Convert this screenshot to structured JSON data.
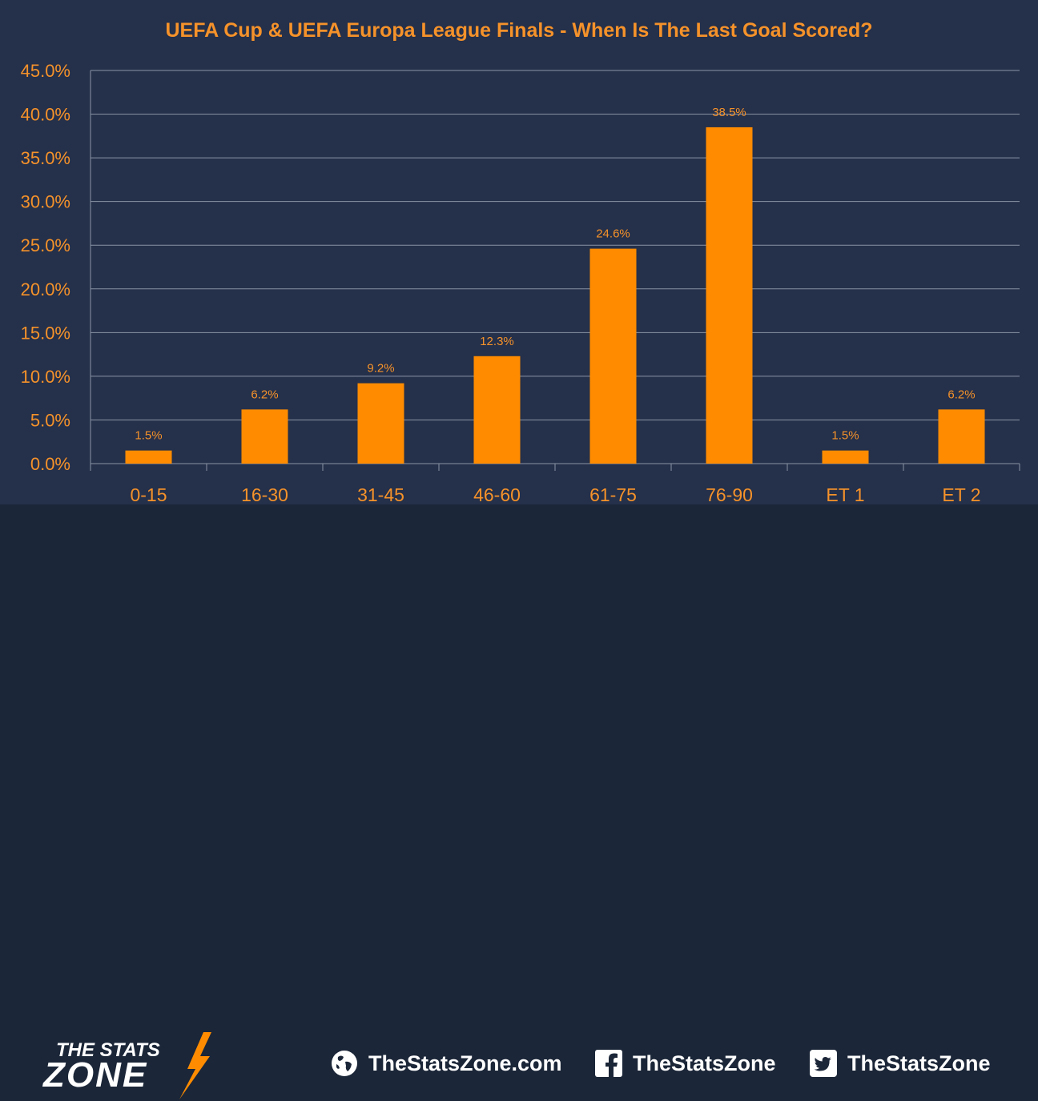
{
  "chart_data": {
    "type": "bar",
    "title": "UEFA Cup & UEFA Europa League Finals - When Is The Last Goal Scored?",
    "categories": [
      "0-15",
      "16-30",
      "31-45",
      "46-60",
      "61-75",
      "76-90",
      "ET 1",
      "ET 2"
    ],
    "values": [
      1.5,
      6.2,
      9.2,
      12.3,
      24.6,
      38.5,
      1.5,
      6.2
    ],
    "value_labels": [
      "1.5%",
      "6.2%",
      "9.2%",
      "12.3%",
      "24.6%",
      "38.5%",
      "1.5%",
      "6.2%"
    ],
    "y_ticks": [
      "0.0%",
      "5.0%",
      "10.0%",
      "15.0%",
      "20.0%",
      "25.0%",
      "30.0%",
      "35.0%",
      "40.0%",
      "45.0%"
    ],
    "ylim": [
      0,
      45
    ],
    "xlabel": "",
    "ylabel": "",
    "grid": true,
    "legend": "none",
    "bar_color": "#ff8c00",
    "text_color": "#f5922a",
    "background_color": "#25304a"
  },
  "footer": {
    "logo_line1": "THE STATS",
    "logo_line2": "ZONE",
    "website": "TheStatsZone.com",
    "facebook": "TheStatsZone",
    "twitter": "TheStatsZone",
    "icons": [
      "globe-icon",
      "facebook-icon",
      "twitter-icon"
    ]
  }
}
